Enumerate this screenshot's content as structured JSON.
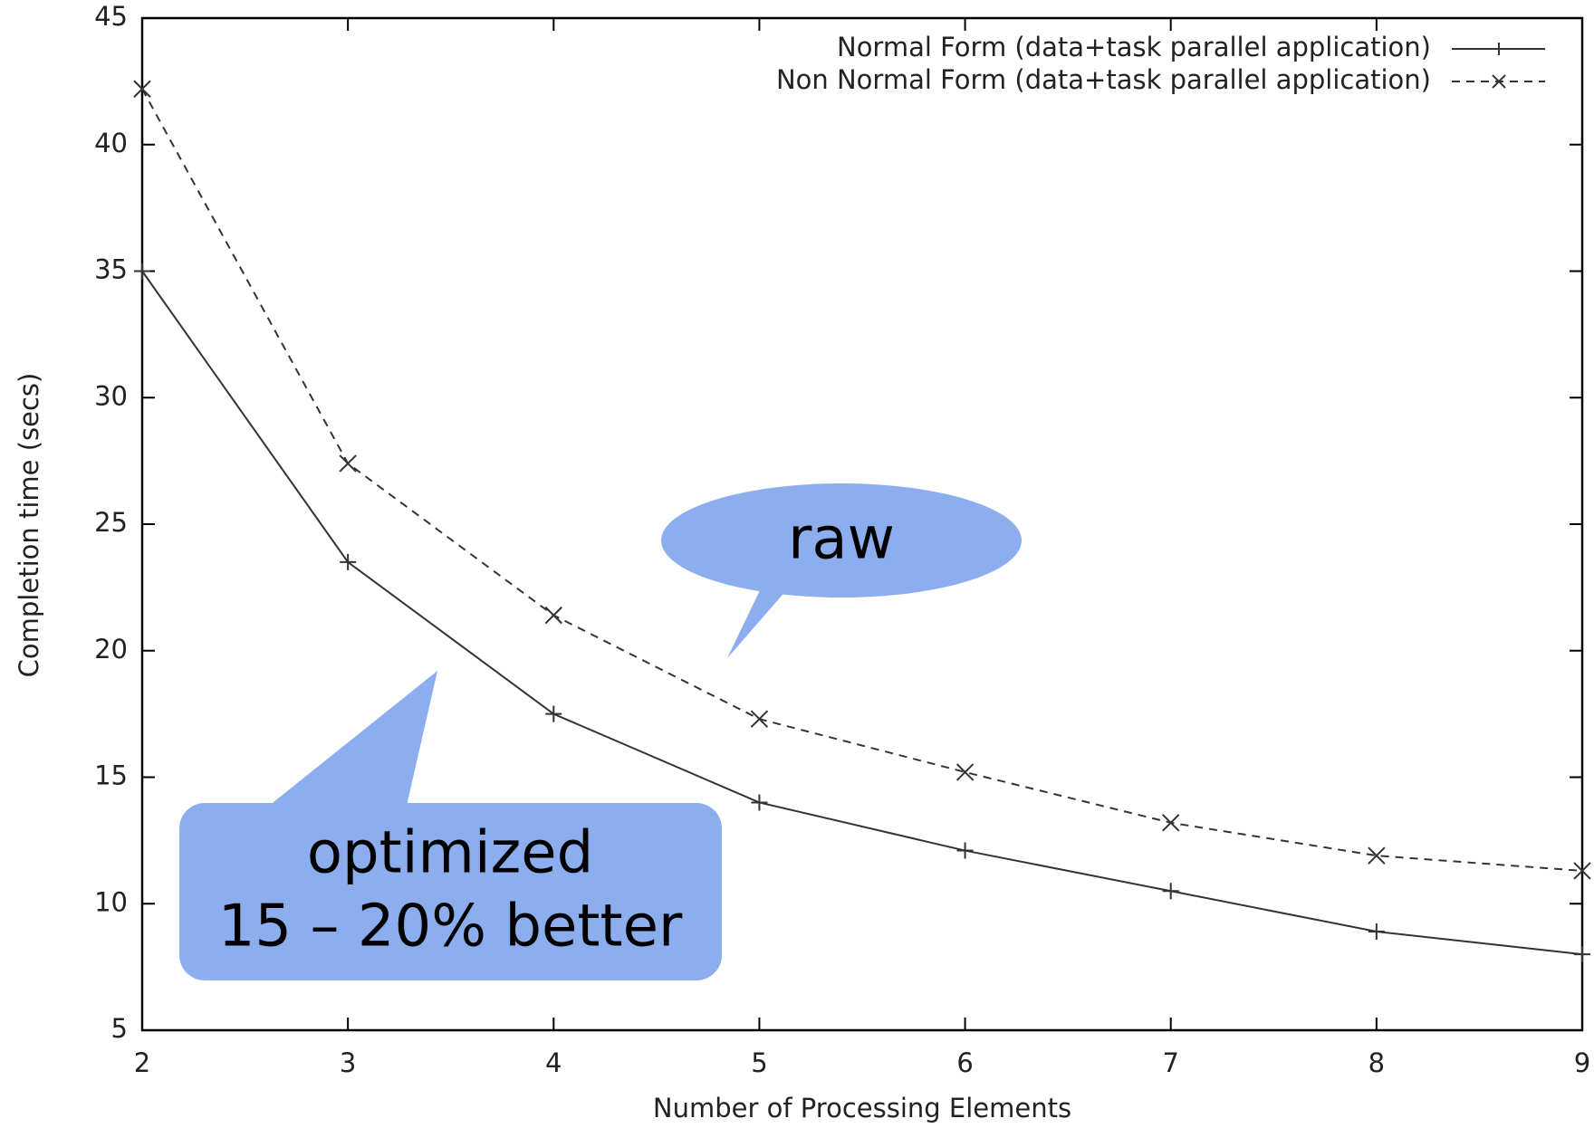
{
  "chart_data": {
    "type": "line",
    "xlabel": "Number of Processing Elements",
    "ylabel": "Completion time (secs)",
    "x": [
      2,
      3,
      4,
      5,
      6,
      7,
      8,
      9
    ],
    "series": [
      {
        "name": "Normal Form (data+task parallel application)",
        "color": "#333333",
        "line_style": "solid",
        "marker": "plus",
        "values": [
          35,
          23.5,
          17.5,
          14,
          12.1,
          10.5,
          8.9,
          8.0
        ]
      },
      {
        "name": "Non Normal Form (data+task parallel application)",
        "color": "#333333",
        "line_style": "dashed",
        "marker": "cross",
        "values": [
          42.2,
          27.4,
          21.4,
          17.3,
          15.2,
          13.2,
          11.9,
          11.3
        ]
      }
    ],
    "xlim": [
      2,
      9
    ],
    "xticks": [
      2,
      3,
      4,
      5,
      6,
      7,
      8,
      9
    ],
    "ylim": [
      5,
      45
    ],
    "yticks": [
      5,
      10,
      15,
      20,
      25,
      30,
      35,
      40,
      45
    ],
    "legend": "top-right",
    "annotations": {
      "raw": "raw",
      "optimized": [
        "optimized",
        "15 – 20% better"
      ]
    }
  }
}
